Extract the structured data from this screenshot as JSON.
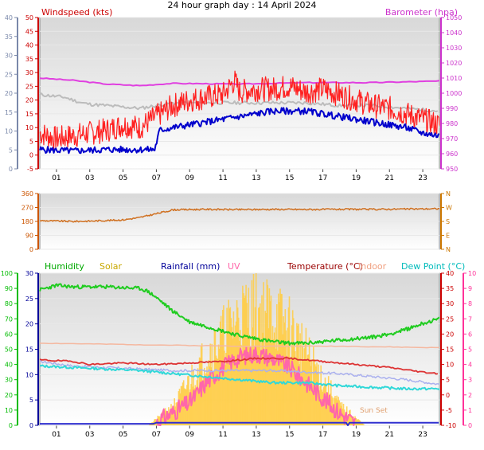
{
  "title": "24 hour graph day : 14 April 2024",
  "x_ticks": [
    "01",
    "03",
    "05",
    "07",
    "09",
    "11",
    "13",
    "15",
    "17",
    "19",
    "21",
    "23"
  ],
  "colors": {
    "wind_avg": "#0000cc",
    "wind_gust": "#ff2020",
    "baro": "#e040e0",
    "temp_grey": "#bcbcbc",
    "dir": "#d07020",
    "humidity": "#20cc20",
    "solar": "#ffcc44",
    "rain": "#3030d0",
    "uv": "#ff66aa",
    "temp": "#dd3333",
    "indoor": "#f5b8a0",
    "dew": "#30d8d8",
    "dew_light": "#aab0ee"
  },
  "chart_data": [
    {
      "type": "line",
      "legend": [
        "Windspeed (kts)",
        "Barometer (hpa)"
      ],
      "y_left": {
        "ticks": [
          -5,
          0,
          5,
          10,
          15,
          20,
          25,
          30,
          35,
          40,
          45,
          50
        ],
        "range": [
          -5,
          50
        ]
      },
      "y_right": {
        "ticks": [
          950,
          960,
          970,
          980,
          990,
          1000,
          1010,
          1020,
          1030,
          1040,
          1050
        ],
        "range": [
          950,
          1050
        ]
      },
      "y_outer_left": {
        "ticks": [
          0,
          5,
          10,
          15,
          20,
          25,
          30,
          35,
          40
        ],
        "range": [
          0,
          40
        ]
      },
      "series": [
        {
          "name": "Barometer (hpa)",
          "axis": "right",
          "points": [
            [
              0,
              1010
            ],
            [
              2,
              1008.5
            ],
            [
              4,
              1006
            ],
            [
              6,
              1005
            ],
            [
              8,
              1006.5
            ],
            [
              12,
              1006
            ],
            [
              16,
              1007
            ],
            [
              20,
              1007
            ],
            [
              24,
              1008
            ]
          ]
        },
        {
          "name": "Windspeed (kts)",
          "axis": "left",
          "points": [
            [
              0,
              2
            ],
            [
              2,
              1.5
            ],
            [
              4,
              2
            ],
            [
              6,
              2
            ],
            [
              6.9,
              2
            ],
            [
              7.2,
              9
            ],
            [
              8,
              10
            ],
            [
              9,
              11
            ],
            [
              10,
              12
            ],
            [
              11,
              13
            ],
            [
              12,
              14
            ],
            [
              13,
              15
            ],
            [
              14,
              16
            ],
            [
              15,
              16
            ],
            [
              16,
              16
            ],
            [
              17,
              15
            ],
            [
              18,
              14
            ],
            [
              19,
              13
            ],
            [
              20,
              12
            ],
            [
              21,
              11
            ],
            [
              22,
              10
            ],
            [
              23,
              8
            ],
            [
              24,
              7
            ]
          ]
        },
        {
          "name": "",
          "axis": "left",
          "style": "gust",
          "points": [
            [
              0,
              8
            ],
            [
              1,
              6
            ],
            [
              2,
              7
            ],
            [
              3,
              8
            ],
            [
              4,
              9
            ],
            [
              5,
              11
            ],
            [
              6,
              10
            ],
            [
              7,
              14
            ],
            [
              8,
              18
            ],
            [
              9,
              20
            ],
            [
              10,
              21
            ],
            [
              11,
              22
            ],
            [
              11.7,
              27
            ],
            [
              12,
              23
            ],
            [
              13,
              24
            ],
            [
              14,
              24
            ],
            [
              15,
              25
            ],
            [
              16,
              23
            ],
            [
              17,
              24
            ],
            [
              18,
              22
            ],
            [
              19,
              20
            ],
            [
              20,
              18
            ],
            [
              21,
              17
            ],
            [
              22,
              15
            ],
            [
              23,
              13
            ],
            [
              24,
              11
            ]
          ]
        },
        {
          "name": "",
          "axis": "left",
          "style": "grey",
          "points": [
            [
              0,
              22
            ],
            [
              1.5,
              21
            ],
            [
              2.5,
              19
            ],
            [
              3,
              18.5
            ],
            [
              4,
              18
            ],
            [
              5,
              17.5
            ],
            [
              6,
              17
            ],
            [
              7,
              18
            ],
            [
              8,
              19
            ],
            [
              10,
              19
            ],
            [
              12,
              19
            ],
            [
              14,
              19
            ],
            [
              16,
              19
            ],
            [
              18,
              18
            ],
            [
              20,
              18
            ],
            [
              22,
              17
            ],
            [
              24,
              16
            ]
          ]
        }
      ]
    },
    {
      "type": "line",
      "y_left": {
        "ticks": [
          0,
          90,
          180,
          270,
          360
        ],
        "range": [
          0,
          360
        ]
      },
      "y_right": {
        "ticks": [
          "N",
          "W",
          "S",
          "E",
          "N"
        ]
      },
      "series": [
        {
          "name": "Wind direction",
          "points": [
            [
              0,
              185
            ],
            [
              2,
              180
            ],
            [
              3,
              182
            ],
            [
              5,
              190
            ],
            [
              6,
              205
            ],
            [
              7,
              230
            ],
            [
              8,
              255
            ],
            [
              10,
              258
            ],
            [
              12,
              256
            ],
            [
              14,
              258
            ],
            [
              16,
              257
            ],
            [
              18,
              258
            ],
            [
              20,
              258
            ],
            [
              22,
              260
            ],
            [
              24,
              262
            ]
          ]
        }
      ]
    },
    {
      "type": "line",
      "legend": [
        "Humidity",
        "Solar",
        "Rainfall (mm)",
        "UV",
        "Temperature (°C)",
        "Indoor",
        "Dew Point (°C)"
      ],
      "y_outer_left": {
        "ticks": [
          0,
          10,
          20,
          30,
          40,
          50,
          60,
          70,
          80,
          90,
          100
        ],
        "range": [
          0,
          100
        ]
      },
      "y_left": {
        "ticks": [
          0,
          5,
          10,
          15,
          20,
          25,
          30
        ],
        "range": [
          0,
          30
        ]
      },
      "y_right": {
        "ticks": [
          -10,
          -5,
          0,
          5,
          10,
          15,
          20,
          25,
          30,
          35,
          40
        ],
        "range": [
          -10,
          40
        ]
      },
      "y_outer_right": {
        "ticks": [
          0,
          1,
          2,
          3,
          4,
          5,
          6,
          7,
          8,
          9,
          10
        ],
        "range": [
          0,
          10
        ]
      },
      "annotations": [
        "Sun Set"
      ],
      "series": [
        {
          "name": "Humidity",
          "axis": "outer_left",
          "points": [
            [
              0,
              89
            ],
            [
              1,
              92
            ],
            [
              2,
              91
            ],
            [
              4,
              91
            ],
            [
              6,
              90
            ],
            [
              6.5,
              88
            ],
            [
              7,
              84
            ],
            [
              8,
              75
            ],
            [
              9,
              68
            ],
            [
              10,
              65
            ],
            [
              11,
              62
            ],
            [
              12,
              59
            ],
            [
              13,
              57
            ],
            [
              14,
              55
            ],
            [
              15,
              54
            ],
            [
              16,
              54
            ],
            [
              17,
              55
            ],
            [
              18,
              56
            ],
            [
              19,
              57
            ],
            [
              20,
              58
            ],
            [
              21,
              60
            ],
            [
              22,
              63
            ],
            [
              23,
              67
            ],
            [
              24,
              70
            ]
          ]
        },
        {
          "name": "Temperature (°C)",
          "axis": "right",
          "points": [
            [
              0,
              11.5
            ],
            [
              2,
              11
            ],
            [
              3,
              10
            ],
            [
              5,
              10.5
            ],
            [
              7,
              10
            ],
            [
              9,
              10.5
            ],
            [
              11,
              11
            ],
            [
              13,
              12
            ],
            [
              15,
              12
            ],
            [
              17,
              11
            ],
            [
              19,
              10
            ],
            [
              21,
              9
            ],
            [
              23,
              7.5
            ],
            [
              24,
              7
            ]
          ]
        },
        {
          "name": "Indoor",
          "axis": "right",
          "points": [
            [
              0,
              17
            ],
            [
              6,
              16.5
            ],
            [
              12,
              16
            ],
            [
              18,
              16
            ],
            [
              24,
              15.5
            ]
          ]
        },
        {
          "name": "Dew Point (°C)",
          "axis": "right",
          "points": [
            [
              0,
              9.5
            ],
            [
              2,
              9
            ],
            [
              4,
              8.5
            ],
            [
              6,
              8
            ],
            [
              8,
              7
            ],
            [
              10,
              6
            ],
            [
              12,
              5
            ],
            [
              14,
              4
            ],
            [
              16,
              4
            ],
            [
              18,
              3
            ],
            [
              20,
              2.5
            ],
            [
              22,
              2
            ],
            [
              24,
              2
            ]
          ]
        },
        {
          "name": "",
          "axis": "right",
          "style": "light",
          "points": [
            [
              0,
              11
            ],
            [
              2,
              9.5
            ],
            [
              4,
              9
            ],
            [
              6,
              8.5
            ],
            [
              8,
              8
            ],
            [
              10,
              8
            ],
            [
              12,
              8
            ],
            [
              14,
              8
            ],
            [
              16,
              7.5
            ],
            [
              18,
              7
            ],
            [
              20,
              6
            ],
            [
              22,
              5
            ],
            [
              24,
              3.5
            ]
          ]
        },
        {
          "name": "UV",
          "axis": "outer_right",
          "points": [
            [
              7,
              0.2
            ],
            [
              9,
              1.5
            ],
            [
              10,
              2.8
            ],
            [
              11,
              3.8
            ],
            [
              12,
              4.5
            ],
            [
              13,
              4.7
            ],
            [
              14,
              4.4
            ],
            [
              15,
              3.8
            ],
            [
              16,
              2.8
            ],
            [
              17,
              1.8
            ],
            [
              18,
              0.8
            ],
            [
              19,
              0.1
            ]
          ]
        },
        {
          "name": "Rainfall (mm)",
          "axis": "left",
          "points": [
            [
              0,
              0.3
            ],
            [
              6.8,
              0.3
            ],
            [
              7,
              0.5
            ],
            [
              18.4,
              0.5
            ],
            [
              18.5,
              0
            ],
            [
              18.6,
              0.5
            ],
            [
              24,
              0.5
            ]
          ]
        },
        {
          "name": "Solar",
          "axis": "outer_right",
          "style": "area",
          "points": [
            [
              6.5,
              0
            ],
            [
              7,
              0.5
            ],
            [
              8,
              1.5
            ],
            [
              9,
              3.5
            ],
            [
              10,
              5.5
            ],
            [
              11,
              7
            ],
            [
              12,
              8.5
            ],
            [
              13,
              9
            ],
            [
              14,
              8.5
            ],
            [
              15,
              7.5
            ],
            [
              16,
              5.5
            ],
            [
              17,
              3.5
            ],
            [
              18,
              1.5
            ],
            [
              19,
              0.5
            ],
            [
              19.5,
              0
            ]
          ]
        }
      ]
    }
  ]
}
